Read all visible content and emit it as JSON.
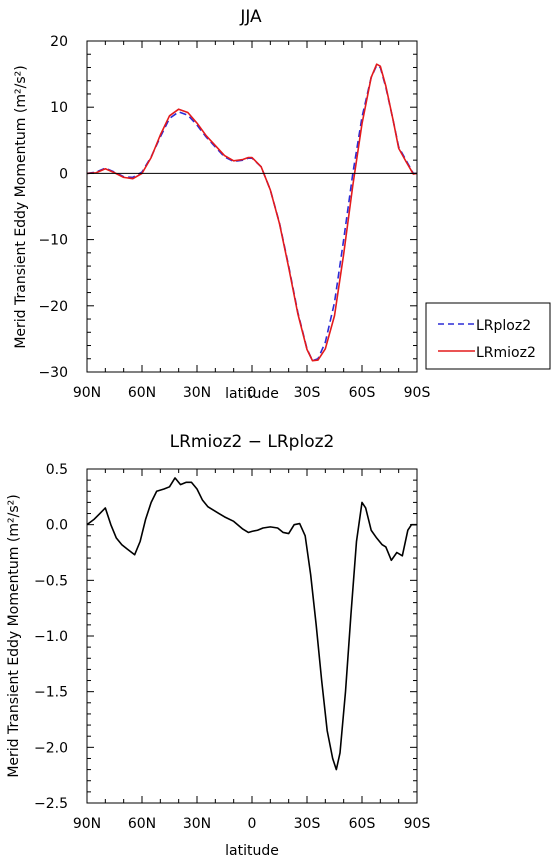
{
  "chart_data": [
    {
      "type": "line",
      "title": "JJA",
      "xlabel": "latitude",
      "ylabel": "Merid Transient Eddy Momentum (m²/s²)",
      "x_ticks": [
        "90N",
        "60N",
        "30N",
        "0",
        "30S",
        "60S",
        "90S"
      ],
      "y_ticks": [
        "20",
        "10",
        "0",
        "−10",
        "−20",
        "−30"
      ],
      "xlim": [
        90,
        -90
      ],
      "ylim": [
        -30,
        20
      ],
      "legend_position": "right",
      "series": [
        {
          "name": "LRploz2",
          "color": "#2b2bd6",
          "style": "dashed",
          "points": [
            [
              90,
              0.0
            ],
            [
              85,
              0.2
            ],
            [
              80,
              0.8
            ],
            [
              75,
              0.2
            ],
            [
              70,
              -0.5
            ],
            [
              65,
              -0.6
            ],
            [
              60,
              0.2
            ],
            [
              55,
              2.5
            ],
            [
              50,
              5.5
            ],
            [
              45,
              8.3
            ],
            [
              40,
              9.3
            ],
            [
              35,
              8.8
            ],
            [
              30,
              7.3
            ],
            [
              25,
              5.5
            ],
            [
              20,
              4.0
            ],
            [
              15,
              2.5
            ],
            [
              10,
              1.8
            ],
            [
              5,
              2.0
            ],
            [
              2,
              2.3
            ],
            [
              0,
              2.3
            ],
            [
              -5,
              1.0
            ],
            [
              -10,
              -2.5
            ],
            [
              -15,
              -7.5
            ],
            [
              -20,
              -14.0
            ],
            [
              -25,
              -21.0
            ],
            [
              -30,
              -26.5
            ],
            [
              -33,
              -28.3
            ],
            [
              -36,
              -28.0
            ],
            [
              -40,
              -25.5
            ],
            [
              -45,
              -19.5
            ],
            [
              -50,
              -10.0
            ],
            [
              -55,
              0.0
            ],
            [
              -60,
              8.5
            ],
            [
              -65,
              14.5
            ],
            [
              -68,
              16.3
            ],
            [
              -70,
              16.0
            ],
            [
              -73,
              13.0
            ],
            [
              -77,
              8.0
            ],
            [
              -80,
              4.0
            ],
            [
              -84,
              2.0
            ],
            [
              -88,
              0.0
            ],
            [
              -90,
              0.0
            ]
          ]
        },
        {
          "name": "LRmioz2",
          "color": "#e41a1c",
          "style": "solid",
          "points": [
            [
              90,
              0.0
            ],
            [
              85,
              0.1
            ],
            [
              80,
              0.7
            ],
            [
              75,
              0.1
            ],
            [
              70,
              -0.6
            ],
            [
              65,
              -0.8
            ],
            [
              60,
              0.0
            ],
            [
              55,
              2.4
            ],
            [
              50,
              5.8
            ],
            [
              45,
              8.7
            ],
            [
              40,
              9.7
            ],
            [
              35,
              9.2
            ],
            [
              30,
              7.6
            ],
            [
              25,
              5.7
            ],
            [
              20,
              4.2
            ],
            [
              15,
              2.7
            ],
            [
              10,
              1.9
            ],
            [
              5,
              2.1
            ],
            [
              2,
              2.4
            ],
            [
              0,
              2.4
            ],
            [
              -5,
              1.0
            ],
            [
              -10,
              -2.5
            ],
            [
              -15,
              -7.6
            ],
            [
              -20,
              -14.2
            ],
            [
              -25,
              -21.2
            ],
            [
              -30,
              -26.6
            ],
            [
              -33,
              -28.3
            ],
            [
              -36,
              -28.2
            ],
            [
              -40,
              -26.5
            ],
            [
              -45,
              -21.5
            ],
            [
              -50,
              -12.2
            ],
            [
              -55,
              -1.8
            ],
            [
              -60,
              7.5
            ],
            [
              -65,
              14.5
            ],
            [
              -68,
              16.5
            ],
            [
              -70,
              16.2
            ],
            [
              -73,
              13.2
            ],
            [
              -77,
              8.0
            ],
            [
              -80,
              3.8
            ],
            [
              -84,
              1.8
            ],
            [
              -88,
              -0.1
            ],
            [
              -90,
              0.0
            ]
          ]
        }
      ]
    },
    {
      "type": "line",
      "title": "LRmioz2 − LRploz2",
      "xlabel": "latitude",
      "ylabel": "Merid Transient Eddy Momentum (m²/s²)",
      "x_ticks": [
        "90N",
        "60N",
        "30N",
        "0",
        "30S",
        "60S",
        "90S"
      ],
      "y_ticks": [
        "0.5",
        "0.0",
        "−0.5",
        "−1.0",
        "−1.5",
        "−2.0",
        "−2.5"
      ],
      "xlim": [
        90,
        -90
      ],
      "ylim": [
        -2.5,
        0.5
      ],
      "series": [
        {
          "name": "",
          "color": "#000000",
          "style": "solid",
          "points": [
            [
              90,
              0.0
            ],
            [
              86,
              0.05
            ],
            [
              83,
              0.1
            ],
            [
              80,
              0.15
            ],
            [
              77,
              0.0
            ],
            [
              74,
              -0.12
            ],
            [
              71,
              -0.18
            ],
            [
              68,
              -0.22
            ],
            [
              64,
              -0.27
            ],
            [
              61,
              -0.15
            ],
            [
              58,
              0.05
            ],
            [
              55,
              0.2
            ],
            [
              52,
              0.3
            ],
            [
              48,
              0.32
            ],
            [
              45,
              0.34
            ],
            [
              42,
              0.42
            ],
            [
              39,
              0.36
            ],
            [
              36,
              0.38
            ],
            [
              33,
              0.38
            ],
            [
              30,
              0.32
            ],
            [
              27,
              0.22
            ],
            [
              24,
              0.16
            ],
            [
              21,
              0.13
            ],
            [
              18,
              0.1
            ],
            [
              15,
              0.07
            ],
            [
              10,
              0.03
            ],
            [
              5,
              -0.04
            ],
            [
              2,
              -0.07
            ],
            [
              0,
              -0.06
            ],
            [
              -3,
              -0.05
            ],
            [
              -6,
              -0.03
            ],
            [
              -10,
              -0.02
            ],
            [
              -14,
              -0.03
            ],
            [
              -17,
              -0.07
            ],
            [
              -20,
              -0.08
            ],
            [
              -23,
              0.0
            ],
            [
              -26,
              0.01
            ],
            [
              -29,
              -0.1
            ],
            [
              -32,
              -0.45
            ],
            [
              -35,
              -0.9
            ],
            [
              -38,
              -1.4
            ],
            [
              -41,
              -1.85
            ],
            [
              -44,
              -2.1
            ],
            [
              -46,
              -2.2
            ],
            [
              -48,
              -2.05
            ],
            [
              -51,
              -1.5
            ],
            [
              -54,
              -0.8
            ],
            [
              -57,
              -0.15
            ],
            [
              -60,
              0.2
            ],
            [
              -62,
              0.15
            ],
            [
              -65,
              -0.05
            ],
            [
              -68,
              -0.12
            ],
            [
              -71,
              -0.18
            ],
            [
              -73,
              -0.2
            ],
            [
              -76,
              -0.32
            ],
            [
              -79,
              -0.25
            ],
            [
              -82,
              -0.28
            ],
            [
              -85,
              -0.05
            ],
            [
              -87,
              0.0
            ],
            [
              -90,
              0.0
            ]
          ]
        }
      ]
    }
  ]
}
